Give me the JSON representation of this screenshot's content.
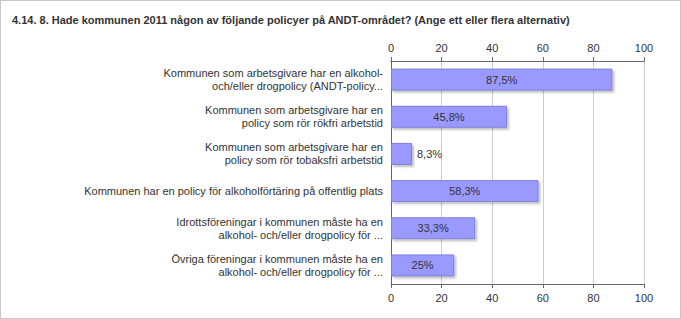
{
  "chart_data": {
    "type": "bar",
    "orientation": "horizontal",
    "title": "4.14. 8. Hade kommunen 2011 någon av följande policyer på ANDT-området? (Ange ett eller flera alternativ)",
    "categories": [
      "Kommunen som arbetsgivare har en alkohol-\noch/eller drogpolicy (ANDT-policy...",
      "Kommunen som arbetsgivare har en\npolicy som rör rökfri arbetstid",
      "Kommunen som arbetsgivare har en\npolicy som rör tobaksfri arbetstid",
      "Kommunen har en policy för alkoholförtäring på offentlig plats",
      "Idrottsföreningar i kommunen måste ha en\nalkohol- och/eller drogpolicy för ...",
      "Övriga föreningar i kommunen måste ha en\nalkohol- och/eller drogpolicy för ..."
    ],
    "values": [
      87.5,
      45.8,
      8.3,
      58.3,
      33.3,
      25
    ],
    "value_labels": [
      "87,5%",
      "45,8%",
      "8,3%",
      "58,3%",
      "33,3%",
      "25%"
    ],
    "data_labels": true,
    "color": "#9999ff",
    "xlim": [
      0,
      100
    ],
    "xticks": [
      0,
      20,
      40,
      60,
      80,
      100
    ],
    "grid": true
  }
}
